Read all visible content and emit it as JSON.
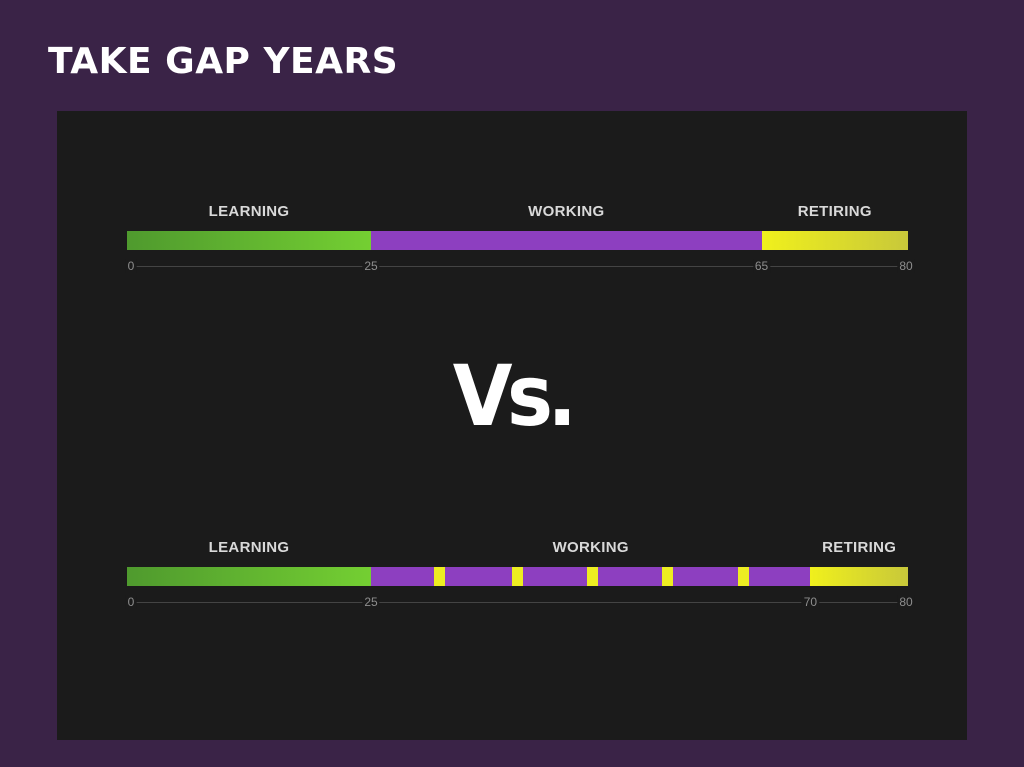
{
  "slide": {
    "title": "TAKE GAP YEARS",
    "vs_text": "Vs."
  },
  "colors": {
    "background": "#3a2347",
    "panel": "#1b1b1b",
    "learning": "#6cc232",
    "working": "#8d3fc0",
    "retiring": "#e6e62a",
    "gap": "#eded22"
  },
  "timelines": [
    {
      "id": "traditional",
      "axis": {
        "min": 0,
        "max": 80
      },
      "labels": {
        "learning": "LEARNING",
        "working": "WORKING",
        "retiring": "RETIRING"
      },
      "phases": [
        {
          "phase": "learning",
          "start": 0,
          "end": 25
        },
        {
          "phase": "working",
          "start": 25,
          "end": 65
        },
        {
          "phase": "retiring",
          "start": 65,
          "end": 80
        }
      ],
      "gaps": [],
      "ticks": [
        "0",
        "25",
        "65",
        "80"
      ]
    },
    {
      "id": "with-gap-years",
      "axis": {
        "min": 0,
        "max": 80
      },
      "labels": {
        "learning": "LEARNING",
        "working": "WORKING",
        "retiring": "RETIRING"
      },
      "phases": [
        {
          "phase": "learning",
          "start": 0,
          "end": 25
        },
        {
          "phase": "working",
          "start": 25,
          "end": 70
        },
        {
          "phase": "retiring",
          "start": 70,
          "end": 80
        }
      ],
      "gaps": [
        32,
        40,
        47.7,
        55.4,
        63.1
      ],
      "ticks": [
        "0",
        "25",
        "70",
        "80"
      ]
    }
  ]
}
